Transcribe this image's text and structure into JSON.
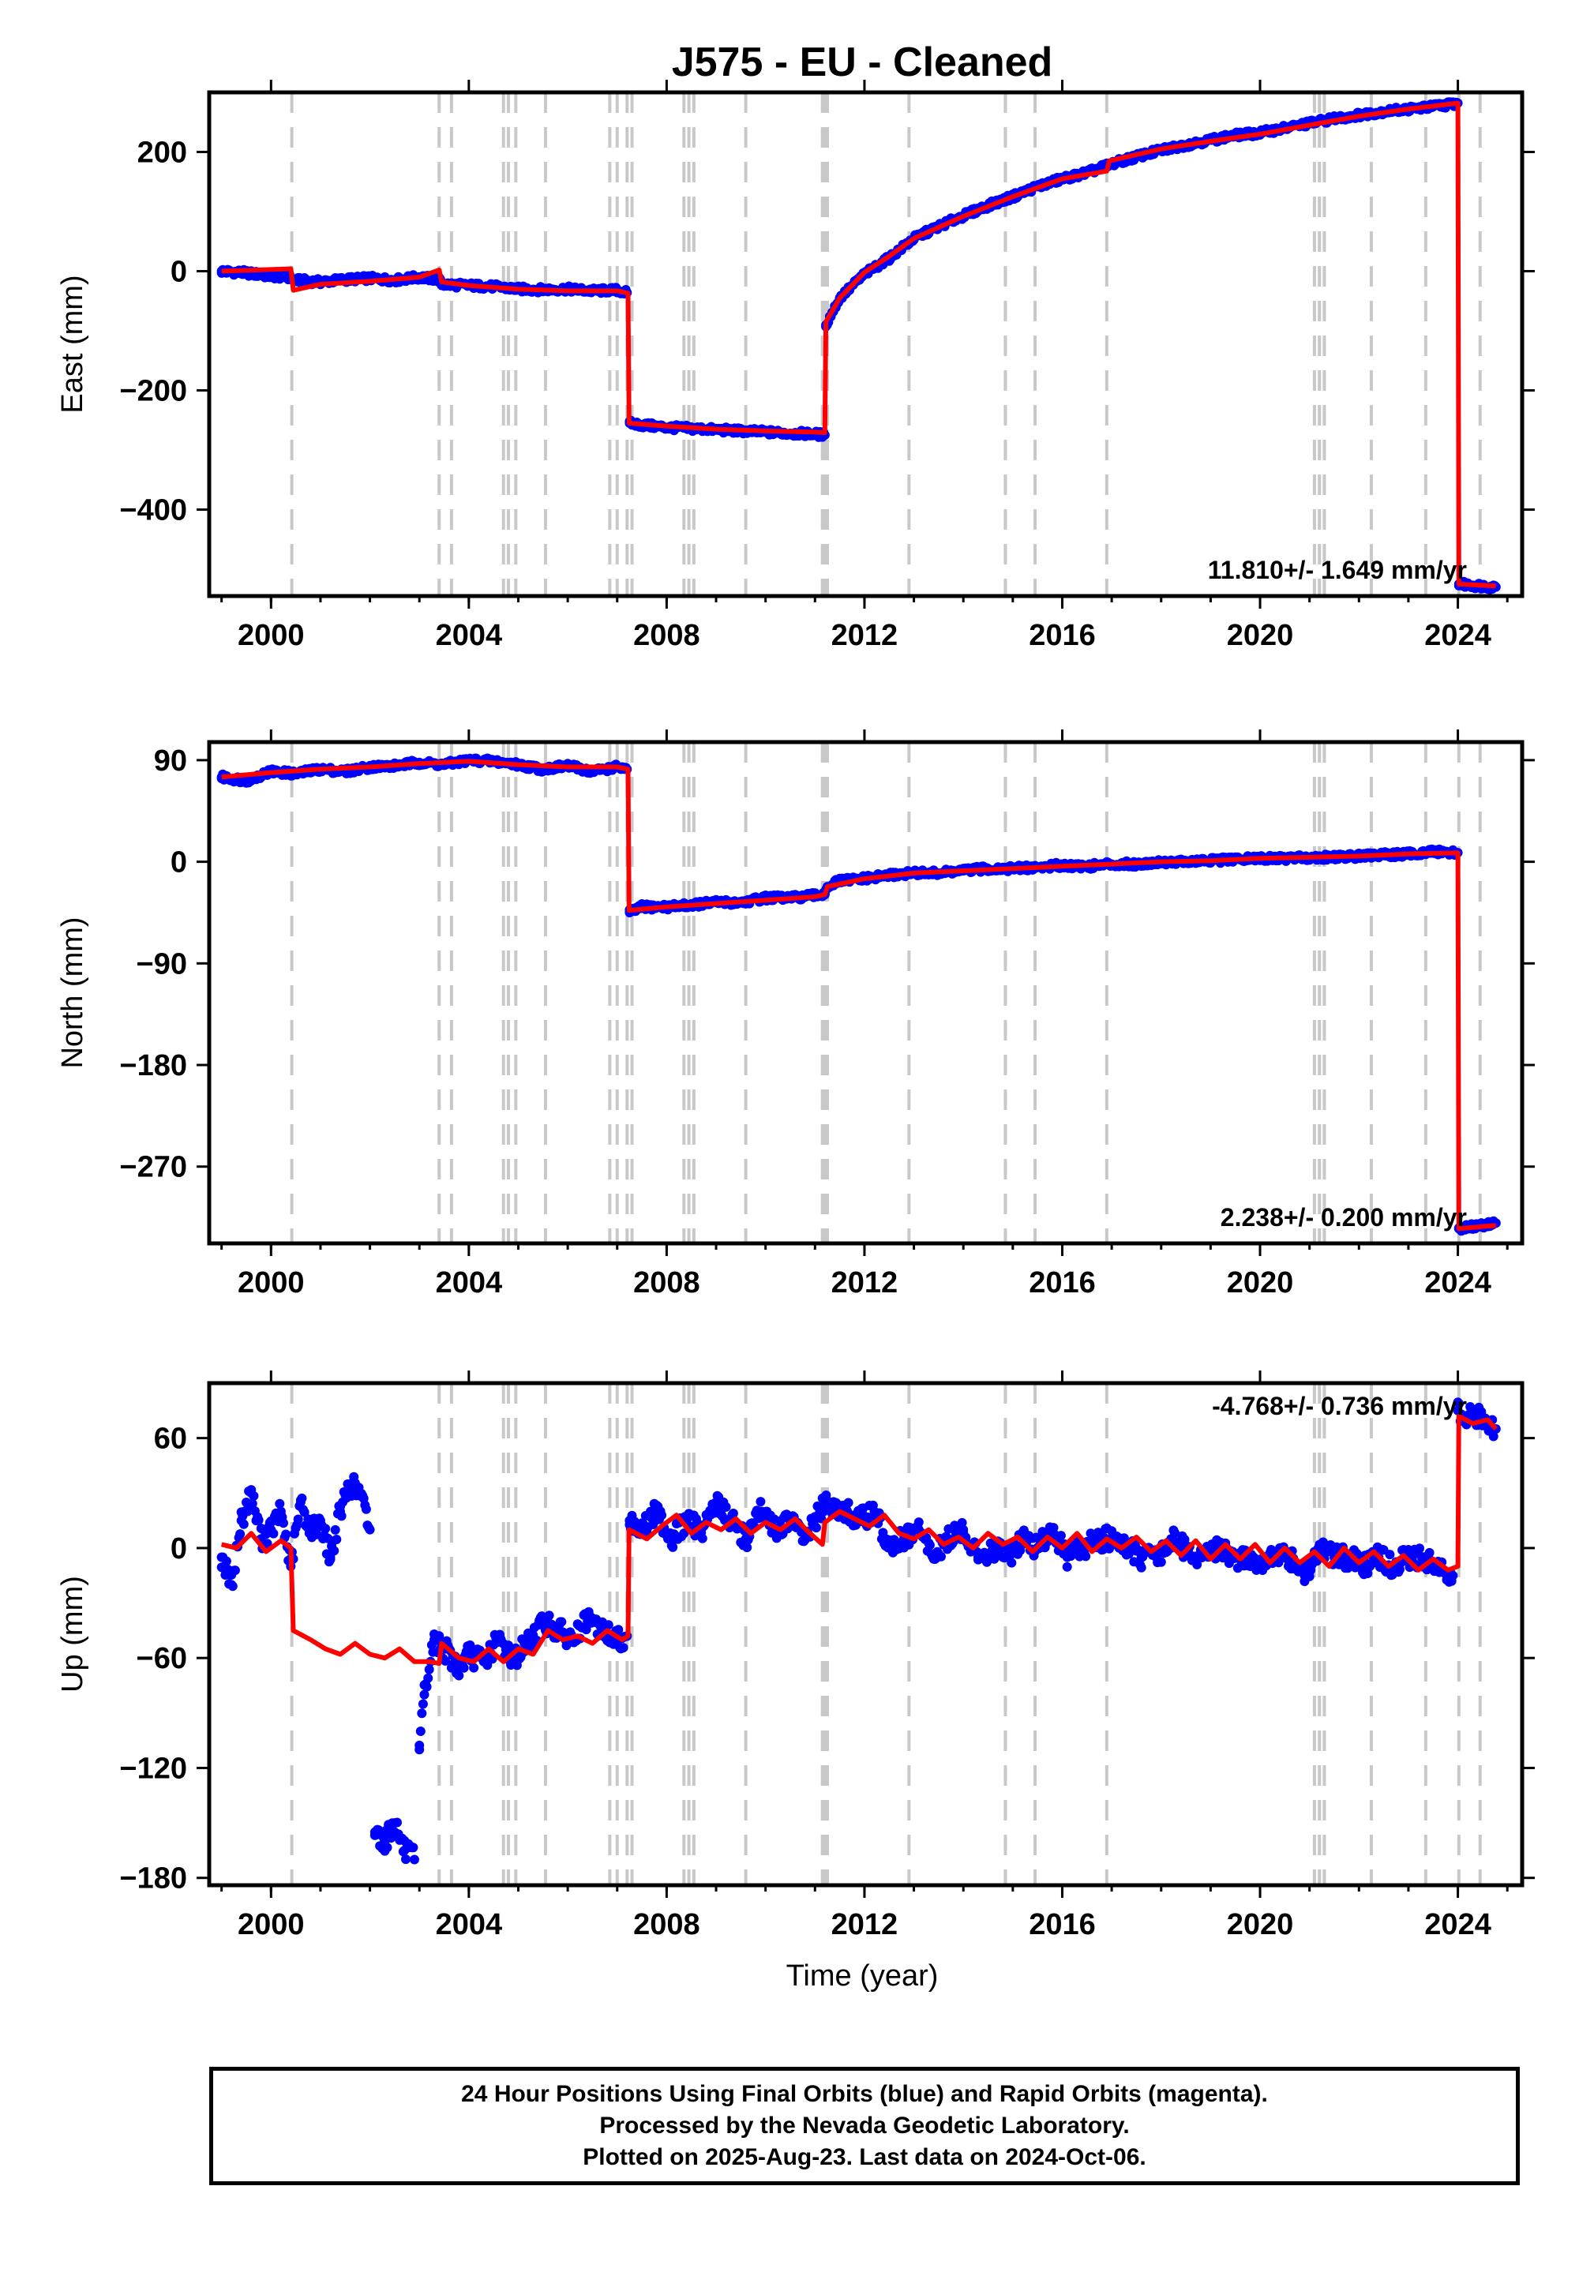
{
  "title": "J575  - EU - Cleaned",
  "xlabel": "Time (year)",
  "colors": {
    "data": "#0000ff",
    "model": "#ff0000",
    "event_line": "#c8c8c8"
  },
  "footer": {
    "line1": "24 Hour Positions Using Final Orbits (blue) and Rapid Orbits (magenta).",
    "line2": "Processed by the Nevada Geodetic Laboratory.",
    "line3": "Plotted on 2025-Aug-23. Last data on 2024-Oct-06."
  },
  "chart_data": [
    {
      "type": "scatter",
      "component": "east",
      "ylabel": "East (mm)",
      "xlim": [
        1998.75,
        2025.3
      ],
      "ylim": [
        -545,
        300
      ],
      "xticks": [
        2000,
        2004,
        2008,
        2012,
        2016,
        2020,
        2024
      ],
      "yticks": [
        200,
        0,
        -200,
        -400
      ],
      "rate_label": "11.810+/- 1.649 mm/yr",
      "rate_position": "bottom-right",
      "series": [
        {
          "style": "blue-dots",
          "x": [
            1999.0,
            1999.5,
            2000.0,
            2000.4,
            2000.45,
            2001.0,
            2001.5,
            2002.0,
            2002.5,
            2003.0,
            2003.4,
            2003.45,
            2004.0,
            2004.5,
            2005.0,
            2005.5,
            2006.0,
            2006.5,
            2007.0,
            2007.2,
            2007.25,
            2007.5,
            2008.0,
            2008.5,
            2009.0,
            2009.5,
            2010.0,
            2010.5,
            2011.0,
            2011.2,
            2011.22,
            2011.5,
            2012.0,
            2012.5,
            2013.0,
            2013.5,
            2014.0,
            2014.5,
            2015.0,
            2015.5,
            2016.0,
            2016.5,
            2017.0,
            2017.5,
            2018.0,
            2018.5,
            2019.0,
            2019.5,
            2020.0,
            2020.5,
            2021.0,
            2021.5,
            2022.0,
            2022.5,
            2023.0,
            2023.5,
            2024.0,
            2024.02,
            2024.3,
            2024.77
          ],
          "y": [
            0,
            -3,
            -8,
            -10,
            -15,
            -18,
            -14,
            -12,
            -15,
            -10,
            -14,
            -22,
            -24,
            -26,
            -30,
            -31,
            -30,
            -33,
            -32,
            -36,
            -255,
            -258,
            -262,
            -264,
            -266,
            -268,
            -270,
            -272,
            -273,
            -275,
            -90,
            -45,
            -5,
            22,
            55,
            75,
            93,
            110,
            125,
            142,
            155,
            165,
            180,
            192,
            203,
            212,
            220,
            228,
            232,
            240,
            248,
            256,
            262,
            268,
            272,
            276,
            282,
            -525,
            -527,
            -530
          ]
        },
        {
          "style": "red-line",
          "x": [
            1999.0,
            2000.4,
            2000.45,
            2001.0,
            2002.0,
            2003.0,
            2003.4,
            2003.45,
            2004.0,
            2005.0,
            2006.0,
            2007.0,
            2007.22,
            2007.24,
            2008.0,
            2009.0,
            2010.0,
            2011.0,
            2011.2,
            2011.22,
            2011.5,
            2012.0,
            2012.5,
            2013.0,
            2014.0,
            2015.0,
            2016.0,
            2016.9,
            2016.95,
            2018.0,
            2019.0,
            2020.0,
            2021.0,
            2022.0,
            2023.0,
            2024.0,
            2024.02,
            2024.77
          ],
          "y": [
            0,
            4,
            -32,
            -22,
            -17,
            -10,
            2,
            -18,
            -24,
            -30,
            -33,
            -33,
            -37,
            -255,
            -260,
            -265,
            -268,
            -270,
            -271,
            -85,
            -45,
            -2,
            25,
            55,
            92,
            125,
            155,
            168,
            185,
            205,
            218,
            230,
            245,
            260,
            272,
            282,
            -525,
            -528
          ]
        }
      ]
    },
    {
      "type": "scatter",
      "component": "north",
      "ylabel": "North (mm)",
      "xlim": [
        1998.75,
        2025.3
      ],
      "ylim": [
        -338,
        106
      ],
      "xticks": [
        2000,
        2004,
        2008,
        2012,
        2016,
        2020,
        2024
      ],
      "yticks": [
        90,
        0,
        -90,
        -180,
        -270
      ],
      "rate_label": "2.238+/- 0.200 mm/yr",
      "rate_position": "bottom-right",
      "series": [
        {
          "style": "blue-dots",
          "x": [
            1999.0,
            1999.5,
            2000.0,
            2000.5,
            2001.0,
            2001.5,
            2002.0,
            2002.5,
            2003.0,
            2003.5,
            2004.0,
            2004.5,
            2005.0,
            2005.5,
            2006.0,
            2006.5,
            2007.0,
            2007.2,
            2007.25,
            2007.5,
            2008.0,
            2008.5,
            2009.0,
            2009.5,
            2010.0,
            2010.5,
            2011.0,
            2011.2,
            2011.25,
            2011.5,
            2012.0,
            2012.5,
            2013.0,
            2013.5,
            2014.0,
            2014.5,
            2015.0,
            2015.5,
            2016.0,
            2016.5,
            2017.0,
            2017.5,
            2018.0,
            2018.5,
            2019.0,
            2019.5,
            2020.0,
            2020.5,
            2021.0,
            2021.5,
            2022.0,
            2022.5,
            2023.0,
            2023.5,
            2024.0,
            2024.02,
            2024.3,
            2024.77
          ],
          "y": [
            75,
            72,
            80,
            78,
            82,
            80,
            84,
            85,
            88,
            86,
            90,
            89,
            86,
            82,
            85,
            80,
            84,
            82,
            -45,
            -40,
            -40,
            -38,
            -36,
            -36,
            -32,
            -32,
            -30,
            -28,
            -22,
            -17,
            -15,
            -12,
            -10,
            -10,
            -8,
            -6,
            -6,
            -5,
            -3,
            -4,
            -2,
            -2,
            0,
            0,
            1,
            2,
            3,
            3,
            4,
            4,
            5,
            6,
            7,
            9,
            8,
            -325,
            -323,
            -320
          ]
        },
        {
          "style": "red-line",
          "x": [
            1999.0,
            2000.0,
            2001.0,
            2002.0,
            2003.0,
            2004.0,
            2005.0,
            2006.0,
            2007.0,
            2007.22,
            2007.24,
            2008.0,
            2009.0,
            2010.0,
            2011.0,
            2011.2,
            2011.25,
            2012.0,
            2013.0,
            2014.0,
            2015.0,
            2016.0,
            2017.0,
            2018.0,
            2019.0,
            2020.0,
            2021.0,
            2022.0,
            2023.0,
            2024.0,
            2024.02,
            2024.77
          ],
          "y": [
            75,
            79,
            82,
            84,
            87,
            89,
            86,
            84,
            84,
            82,
            -43,
            -40,
            -37,
            -34,
            -31,
            -29,
            -22,
            -15,
            -10,
            -8,
            -6,
            -4,
            -2,
            0,
            1,
            3,
            4,
            5,
            7,
            8,
            -325,
            -322
          ]
        }
      ]
    },
    {
      "type": "scatter",
      "component": "up",
      "ylabel": "Up (mm)",
      "xlim": [
        1998.75,
        2025.3
      ],
      "ylim": [
        -184,
        90
      ],
      "xticks": [
        2000,
        2004,
        2008,
        2012,
        2016,
        2020,
        2024
      ],
      "yticks": [
        60,
        0,
        -60,
        -120,
        -180
      ],
      "rate_label": "-4.768+/- 0.736 mm/yr",
      "rate_position": "top-right",
      "series": [
        {
          "style": "blue-dots",
          "x": [
            1999.0,
            1999.2,
            1999.4,
            1999.6,
            1999.8,
            2000.0,
            2000.2,
            2000.4,
            2000.6,
            2000.8,
            2001.0,
            2001.2,
            2001.4,
            2001.6,
            2001.8,
            2002.0,
            2002.1,
            2002.3,
            2002.5,
            2002.7,
            2002.9,
            2003.0,
            2003.1,
            2003.3,
            2003.5,
            2003.8,
            2004.0,
            2004.3,
            2004.6,
            2004.9,
            2005.2,
            2005.5,
            2005.8,
            2006.1,
            2006.4,
            2006.7,
            2007.0,
            2007.2,
            2007.25,
            2007.5,
            2007.8,
            2008.1,
            2008.4,
            2008.7,
            2009.0,
            2009.3,
            2009.6,
            2009.9,
            2010.2,
            2010.5,
            2010.8,
            2011.1,
            2011.3,
            2011.6,
            2011.9,
            2012.2,
            2012.5,
            2012.8,
            2013.1,
            2013.4,
            2013.7,
            2014.0,
            2014.3,
            2014.6,
            2014.9,
            2015.2,
            2015.5,
            2015.8,
            2016.1,
            2016.4,
            2016.7,
            2017.0,
            2017.3,
            2017.6,
            2017.9,
            2018.2,
            2018.5,
            2018.8,
            2019.1,
            2019.4,
            2019.7,
            2020.0,
            2020.3,
            2020.6,
            2020.9,
            2021.2,
            2021.5,
            2021.8,
            2022.1,
            2022.4,
            2022.7,
            2023.0,
            2023.3,
            2023.6,
            2023.9,
            2024.0,
            2024.1,
            2024.3,
            2024.5,
            2024.77
          ],
          "y": [
            -5,
            -20,
            15,
            30,
            5,
            10,
            20,
            -10,
            25,
            10,
            15,
            -5,
            20,
            35,
            30,
            10,
            -155,
            -160,
            -150,
            -165,
            -170,
            -110,
            -80,
            -50,
            -55,
            -65,
            -58,
            -62,
            -50,
            -60,
            -52,
            -40,
            -45,
            -50,
            -40,
            -45,
            -50,
            -48,
            15,
            10,
            20,
            5,
            15,
            10,
            25,
            15,
            5,
            20,
            10,
            15,
            5,
            20,
            25,
            20,
            15,
            20,
            0,
            5,
            10,
            -5,
            5,
            10,
            -5,
            0,
            -5,
            5,
            0,
            10,
            -5,
            0,
            5,
            5,
            0,
            -5,
            -5,
            5,
            0,
            -5,
            0,
            -5,
            -5,
            -10,
            -5,
            -5,
            -15,
            0,
            -5,
            -5,
            -10,
            -5,
            -10,
            -5,
            -5,
            -10,
            -15,
            75,
            70,
            72,
            70,
            65
          ]
        },
        {
          "style": "red-line",
          "x": [
            1999.0,
            1999.3,
            1999.6,
            1999.9,
            2000.2,
            2000.4,
            2000.45,
            2000.8,
            2001.1,
            2001.4,
            2001.7,
            2002.0,
            2002.3,
            2002.6,
            2002.9,
            2003.2,
            2003.4,
            2003.45,
            2003.8,
            2004.1,
            2004.4,
            2004.7,
            2005.0,
            2005.3,
            2005.6,
            2005.9,
            2006.2,
            2006.5,
            2006.8,
            2007.1,
            2007.22,
            2007.24,
            2007.6,
            2007.9,
            2008.2,
            2008.5,
            2008.8,
            2009.1,
            2009.4,
            2009.7,
            2010.0,
            2010.3,
            2010.6,
            2010.9,
            2011.15,
            2011.2,
            2011.5,
            2011.8,
            2012.1,
            2012.4,
            2012.7,
            2013.0,
            2013.3,
            2013.6,
            2013.9,
            2014.2,
            2014.5,
            2014.8,
            2015.1,
            2015.4,
            2015.7,
            2016.0,
            2016.3,
            2016.6,
            2016.9,
            2017.2,
            2017.5,
            2017.8,
            2018.1,
            2018.4,
            2018.7,
            2019.0,
            2019.3,
            2019.6,
            2019.9,
            2020.2,
            2020.5,
            2020.8,
            2021.1,
            2021.4,
            2021.7,
            2022.0,
            2022.3,
            2022.6,
            2022.9,
            2023.2,
            2023.5,
            2023.8,
            2024.0,
            2024.02,
            2024.3,
            2024.6,
            2024.77
          ],
          "y": [
            2,
            0,
            8,
            -2,
            4,
            0,
            -45,
            -50,
            -55,
            -58,
            -52,
            -58,
            -60,
            -55,
            -62,
            -62,
            -63,
            -52,
            -60,
            -62,
            -55,
            -62,
            -55,
            -58,
            -45,
            -50,
            -48,
            -52,
            -45,
            -50,
            -48,
            10,
            5,
            12,
            18,
            8,
            14,
            10,
            16,
            8,
            14,
            10,
            16,
            8,
            2,
            14,
            20,
            16,
            12,
            18,
            8,
            5,
            10,
            2,
            6,
            0,
            8,
            2,
            6,
            -2,
            6,
            0,
            8,
            -2,
            5,
            0,
            6,
            -2,
            4,
            -4,
            4,
            -6,
            2,
            -6,
            2,
            -8,
            0,
            -8,
            -2,
            -10,
            0,
            -8,
            -2,
            -10,
            -4,
            -12,
            -6,
            -12,
            -10,
            72,
            68,
            70,
            65
          ]
        }
      ]
    }
  ]
}
